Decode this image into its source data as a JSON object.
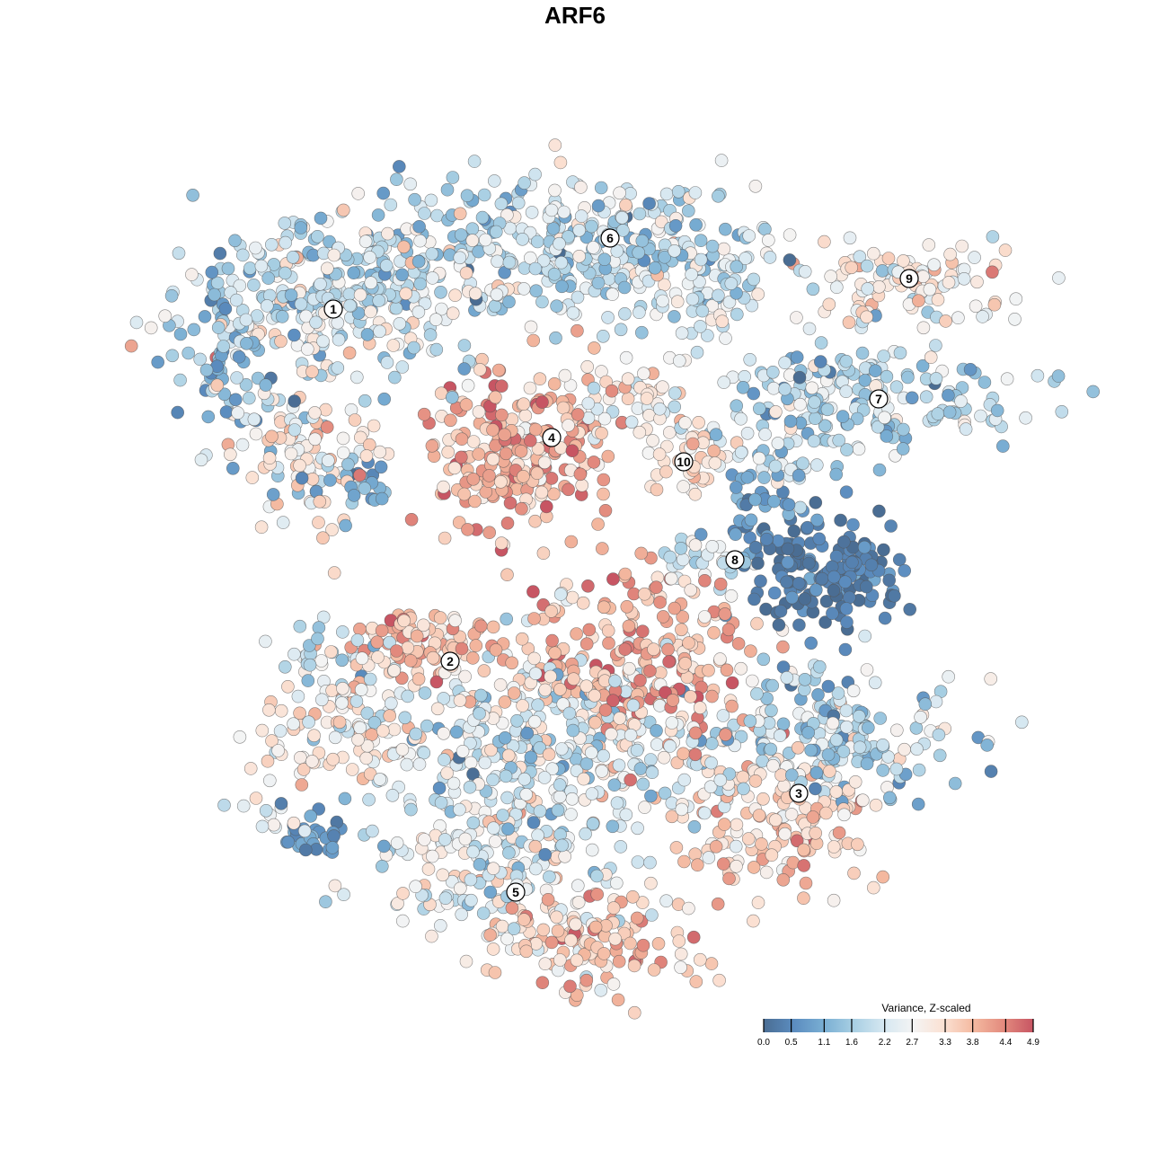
{
  "chart_data": {
    "type": "scatter",
    "title": "ARF6",
    "xlabel": "",
    "ylabel": "",
    "xlim": [
      -64,
      64
    ],
    "ylim": [
      -64,
      64
    ],
    "grid": false,
    "legend": {
      "title": "Variance, Z-scaled",
      "placement": "bottom-right",
      "ticks": [
        "0.0",
        "0.5",
        "1.1",
        "1.6",
        "2.2",
        "2.7",
        "3.3",
        "3.8",
        "4.4",
        "4.9"
      ],
      "range": [
        0,
        4.9
      ],
      "colors": [
        "#4a6d93",
        "#5b8cbf",
        "#79aed3",
        "#a8cfe3",
        "#d5e7f1",
        "#f4f4f4",
        "#fbe1d3",
        "#f4b9a0",
        "#e38b7e",
        "#c75563"
      ]
    },
    "cluster_labels": [
      {
        "label": "1",
        "x": -26.9,
        "y": 29.6
      },
      {
        "label": "2",
        "x": -13.9,
        "y": -9.6
      },
      {
        "label": "3",
        "x": 24.9,
        "y": -24.3
      },
      {
        "label": "4",
        "x": -2.6,
        "y": 15.3
      },
      {
        "label": "5",
        "x": -6.6,
        "y": -35.3
      },
      {
        "label": "6",
        "x": 3.9,
        "y": 37.5
      },
      {
        "label": "7",
        "x": 33.8,
        "y": 19.6
      },
      {
        "label": "8",
        "x": 17.8,
        "y": 1.7
      },
      {
        "label": "9",
        "x": 37.2,
        "y": 33.0
      },
      {
        "label": "10",
        "x": 12.1,
        "y": 12.6
      }
    ],
    "point_groups": [
      {
        "cluster": "1",
        "x": -26,
        "y": 31,
        "sx": 9,
        "sy": 5,
        "n": 350,
        "mean": 2.0,
        "sd": 0.8
      },
      {
        "cluster": "1",
        "x": -31,
        "y": 14,
        "sx": 4,
        "sy": 5,
        "n": 100,
        "mean": 3.0,
        "sd": 0.6
      },
      {
        "cluster": "1",
        "x": -39,
        "y": 24,
        "sx": 3,
        "sy": 5,
        "n": 60,
        "mean": 1.3,
        "sd": 0.6
      },
      {
        "cluster": "1",
        "x": -24,
        "y": 10,
        "sx": 3,
        "sy": 2,
        "n": 30,
        "mean": 0.9,
        "sd": 0.5
      },
      {
        "cluster": "6",
        "x": 0,
        "y": 37,
        "sx": 11,
        "sy": 4,
        "n": 300,
        "mean": 1.9,
        "sd": 0.7
      },
      {
        "cluster": "6",
        "x": 14,
        "y": 32,
        "sx": 5,
        "sy": 3,
        "n": 80,
        "mean": 2.3,
        "sd": 0.6
      },
      {
        "cluster": "4",
        "x": -6.5,
        "y": 14,
        "sx": 5,
        "sy": 4.5,
        "n": 220,
        "mean": 3.9,
        "sd": 0.6
      },
      {
        "cluster": "10",
        "x": 12,
        "y": 13,
        "sx": 2.5,
        "sy": 3,
        "n": 40,
        "mean": 3.3,
        "sd": 0.4
      },
      {
        "cluster": "10",
        "x": 7,
        "y": 19,
        "sx": 4,
        "sy": 2,
        "n": 50,
        "mean": 2.8,
        "sd": 0.6
      },
      {
        "cluster": "9",
        "x": 36,
        "y": 32.5,
        "sx": 5.5,
        "sy": 2.5,
        "n": 100,
        "mean": 2.9,
        "sd": 0.6
      },
      {
        "cluster": "7",
        "x": 32,
        "y": 20,
        "sx": 9,
        "sy": 3,
        "n": 180,
        "mean": 1.8,
        "sd": 0.7
      },
      {
        "cluster": "7",
        "x": 24,
        "y": 14,
        "sx": 4,
        "sy": 2,
        "n": 40,
        "mean": 2.0,
        "sd": 0.7
      },
      {
        "cluster": "8",
        "x": 28,
        "y": 0,
        "sx": 4.5,
        "sy": 3,
        "n": 150,
        "mean": 0.3,
        "sd": 0.3
      },
      {
        "cluster": "8",
        "x": 21,
        "y": 7,
        "sx": 2.5,
        "sy": 2.5,
        "n": 40,
        "mean": 0.8,
        "sd": 0.4
      },
      {
        "cluster": "8",
        "x": 14,
        "y": 1.5,
        "sx": 3,
        "sy": 1.5,
        "n": 30,
        "mean": 2.3,
        "sd": 0.5
      },
      {
        "cluster": "2",
        "x": -17,
        "y": -8,
        "sx": 4,
        "sy": 2,
        "n": 100,
        "mean": 3.6,
        "sd": 0.5
      },
      {
        "cluster": "2",
        "x": -26,
        "y": -17,
        "sx": 5,
        "sy": 3,
        "n": 100,
        "mean": 3.0,
        "sd": 0.6
      },
      {
        "cluster": "2",
        "x": -27,
        "y": -10,
        "sx": 3,
        "sy": 2.5,
        "n": 40,
        "mean": 2.0,
        "sd": 0.6
      },
      {
        "cluster": "centre",
        "x": 6,
        "y": -10,
        "sx": 7,
        "sy": 5,
        "n": 250,
        "mean": 3.9,
        "sd": 0.6
      },
      {
        "cluster": "centre",
        "x": -2,
        "y": -19,
        "sx": 10,
        "sy": 5,
        "n": 300,
        "mean": 2.2,
        "sd": 0.7
      },
      {
        "cluster": "3",
        "x": 28,
        "y": -18,
        "sx": 7,
        "sy": 4,
        "n": 180,
        "mean": 1.8,
        "sd": 0.7
      },
      {
        "cluster": "3",
        "x": 23,
        "y": -27,
        "sx": 6,
        "sy": 4,
        "n": 150,
        "mean": 3.4,
        "sd": 0.5
      },
      {
        "cluster": "5",
        "x": -8,
        "y": -32,
        "sx": 7,
        "sy": 5,
        "n": 200,
        "mean": 2.3,
        "sd": 0.7
      },
      {
        "cluster": "5",
        "x": 2,
        "y": -40,
        "sx": 6,
        "sy": 3,
        "n": 130,
        "mean": 3.6,
        "sd": 0.6
      },
      {
        "cluster": "other",
        "x": -29,
        "y": -29,
        "sx": 2,
        "sy": 1.5,
        "n": 30,
        "mean": 0.8,
        "sd": 0.4
      },
      {
        "cluster": "other",
        "x": -34,
        "y": -27,
        "sx": 1.5,
        "sy": 1,
        "n": 10,
        "mean": 2.5,
        "sd": 0.4
      }
    ]
  }
}
